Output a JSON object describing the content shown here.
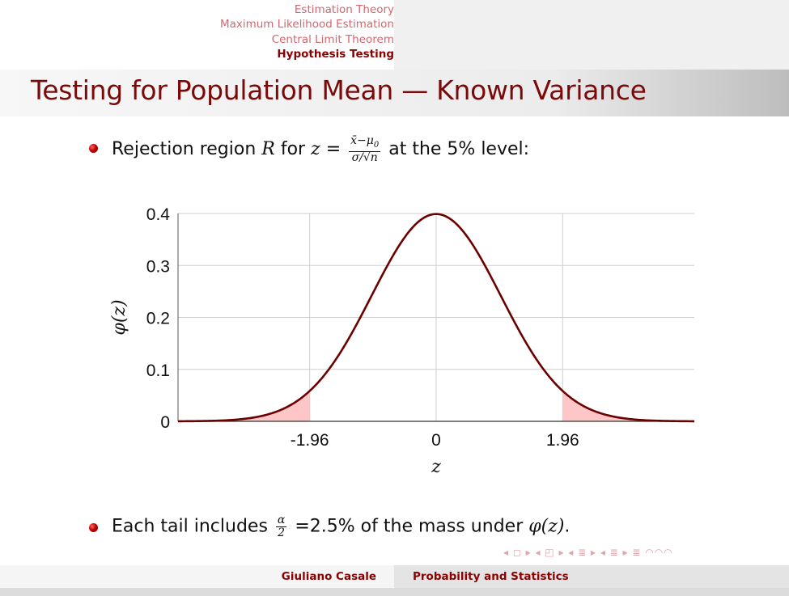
{
  "nav": {
    "sections": [
      "Estimation Theory",
      "Maximum Likelihood Estimation",
      "Central Limit Theorem",
      "Hypothesis Testing"
    ],
    "current_index": 3
  },
  "slide": {
    "title": "Testing for Population Mean — Known Variance",
    "bullet1": {
      "prefix": "Rejection region ",
      "R": "R",
      "mid": " for ",
      "z": "z",
      "eq": " = ",
      "frac_num": "x̄−μ",
      "frac_num_sub": "0",
      "frac_den": "σ/√n",
      "suffix": " at the 5% level:"
    },
    "bullet2": {
      "prefix": "Each tail includes ",
      "frac_num": "α",
      "frac_den": "2",
      "mid": " =2.5% of the mass under ",
      "phi": "φ(z)",
      "suffix": "."
    }
  },
  "chart_data": {
    "type": "area",
    "title": "",
    "xlabel": "z",
    "ylabel": "φ(z)",
    "xlim": [
      -4,
      4
    ],
    "ylim": [
      0,
      0.4
    ],
    "xticks": [
      -1.96,
      0,
      1.96
    ],
    "xtick_labels": [
      "-1.96",
      "0",
      "1.96"
    ],
    "yticks": [
      0,
      0.1,
      0.2,
      0.3,
      0.4
    ],
    "ytick_labels": [
      "0",
      "0.1",
      "0.2",
      "0.3",
      "0.4"
    ],
    "grid": true,
    "series": [
      {
        "function": "standard normal pdf",
        "color": "#6b0000"
      }
    ],
    "shaded_regions": [
      {
        "from": -4,
        "to": -1.96,
        "color": "#ffc6c8"
      },
      {
        "from": 1.96,
        "to": 4,
        "color": "#ffc6c8"
      }
    ],
    "x": [
      -4,
      -3.5,
      -3,
      -2.5,
      -2,
      -1.96,
      -1.5,
      -1,
      -0.5,
      0,
      0.5,
      1,
      1.5,
      1.96,
      2,
      2.5,
      3,
      3.5,
      4
    ],
    "y": [
      0.0001,
      0.0009,
      0.0044,
      0.0175,
      0.054,
      0.0584,
      0.1295,
      0.242,
      0.3521,
      0.3989,
      0.3521,
      0.242,
      0.1295,
      0.0584,
      0.054,
      0.0175,
      0.0044,
      0.0009,
      0.0001
    ]
  },
  "footer": {
    "author": "Giuliano Casale",
    "title": "Probability and Statistics",
    "nav_symbols": "◂ ◻ ▸ ◂ ◰ ▸ ◂ ≣ ▸ ◂ ≣ ▸   ≣   ◠◠◠"
  },
  "colors": {
    "accent": "#8b0000",
    "nav_inactive": "#d4666e",
    "curve": "#6b0000",
    "tail_fill": "#ffc6c8"
  }
}
